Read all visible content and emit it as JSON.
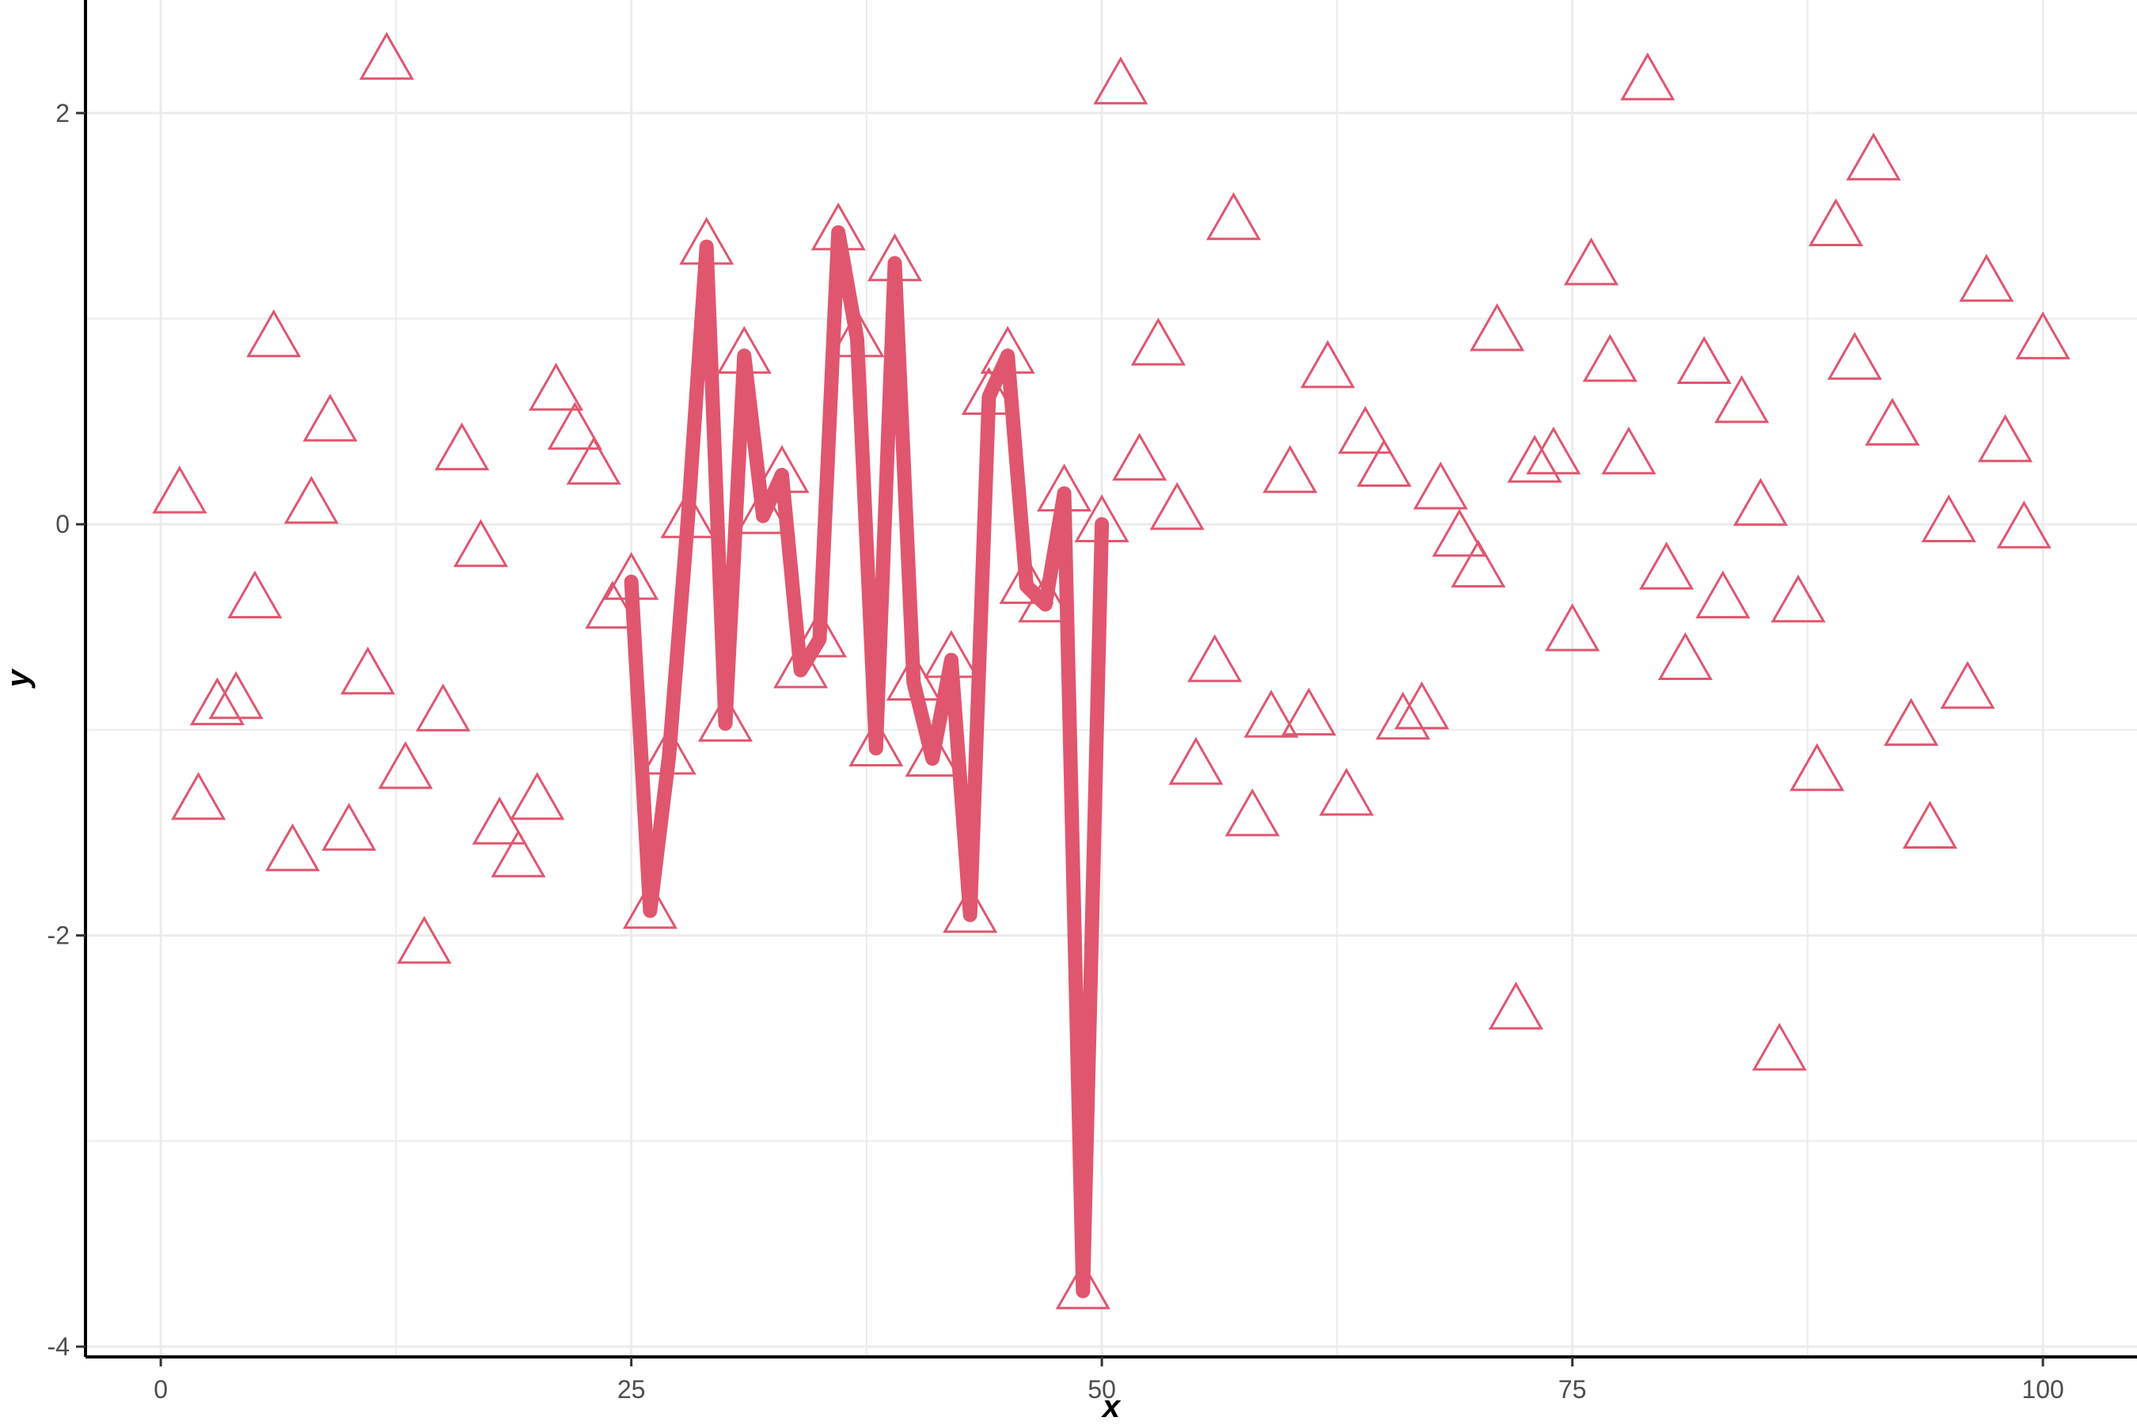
{
  "chart_data": {
    "type": "scatter",
    "xlabel": "x",
    "ylabel": "y",
    "xlim": [
      -4,
      105
    ],
    "ylim": [
      -4.05,
      2.55
    ],
    "x_ticks": [
      0,
      25,
      50,
      75,
      100
    ],
    "y_ticks": [
      -4,
      -2,
      0,
      2
    ],
    "grid": true,
    "legend": "none",
    "colors": {
      "series": "#E0566E",
      "axis": "#000000",
      "grid": "#EBEBEB",
      "tick_text": "#4D4D4D"
    },
    "series": [
      {
        "type": "scatter",
        "marker": "open-triangle",
        "points": [
          [
            1,
            0.14
          ],
          [
            2,
            -1.35
          ],
          [
            3,
            -0.89
          ],
          [
            4,
            -0.86
          ],
          [
            5,
            -0.37
          ],
          [
            6,
            0.9
          ],
          [
            7,
            -1.6
          ],
          [
            8,
            0.09
          ],
          [
            9,
            0.49
          ],
          [
            10,
            -1.5
          ],
          [
            11,
            -0.74
          ],
          [
            12,
            2.25
          ],
          [
            13,
            -1.2
          ],
          [
            14,
            -2.05
          ],
          [
            15,
            -0.92
          ],
          [
            16,
            0.35
          ],
          [
            17,
            -0.12
          ],
          [
            18,
            -1.47
          ],
          [
            19,
            -1.63
          ],
          [
            20,
            -1.35
          ],
          [
            21,
            0.64
          ],
          [
            22,
            0.45
          ],
          [
            23,
            0.28
          ],
          [
            24,
            -0.42
          ],
          [
            25,
            -0.28
          ],
          [
            26,
            -1.88
          ],
          [
            27,
            -1.13
          ],
          [
            28,
            0.02
          ],
          [
            29,
            1.35
          ],
          [
            30,
            -0.97
          ],
          [
            31,
            0.82
          ],
          [
            32,
            0.04
          ],
          [
            33,
            0.24
          ],
          [
            34,
            -0.71
          ],
          [
            35,
            -0.56
          ],
          [
            36,
            1.42
          ],
          [
            37,
            0.9
          ],
          [
            38,
            -1.09
          ],
          [
            39,
            1.27
          ],
          [
            40,
            -0.77
          ],
          [
            41,
            -1.14
          ],
          [
            42,
            -0.66
          ],
          [
            43,
            -1.9
          ],
          [
            44,
            0.62
          ],
          [
            45,
            0.82
          ],
          [
            46,
            -0.3
          ],
          [
            47,
            -0.39
          ],
          [
            48,
            0.15
          ],
          [
            49,
            -3.73
          ],
          [
            50,
            0.0
          ],
          [
            51,
            2.13
          ],
          [
            52,
            0.3
          ],
          [
            53,
            0.86
          ],
          [
            54,
            0.06
          ],
          [
            55,
            -1.18
          ],
          [
            56,
            -0.68
          ],
          [
            57,
            1.47
          ],
          [
            58,
            -1.43
          ],
          [
            59,
            -0.95
          ],
          [
            60,
            0.24
          ],
          [
            61,
            -0.94
          ],
          [
            62,
            0.75
          ],
          [
            63,
            -1.33
          ],
          [
            64,
            0.43
          ],
          [
            65,
            0.27
          ],
          [
            66,
            -0.96
          ],
          [
            67,
            -0.91
          ],
          [
            68,
            0.16
          ],
          [
            69,
            -0.07
          ],
          [
            70,
            -0.22
          ],
          [
            71,
            0.93
          ],
          [
            72,
            -2.37
          ],
          [
            73,
            0.29
          ],
          [
            74,
            0.33
          ],
          [
            75,
            -0.53
          ],
          [
            76,
            1.25
          ],
          [
            77,
            0.78
          ],
          [
            78,
            0.33
          ],
          [
            79,
            2.15
          ],
          [
            80,
            -0.23
          ],
          [
            81,
            -0.67
          ],
          [
            82,
            0.77
          ],
          [
            83,
            -0.37
          ],
          [
            84,
            0.58
          ],
          [
            85,
            0.08
          ],
          [
            86,
            -2.57
          ],
          [
            87,
            -0.39
          ],
          [
            88,
            -1.21
          ],
          [
            89,
            1.44
          ],
          [
            90,
            0.79
          ],
          [
            91,
            1.76
          ],
          [
            92,
            0.47
          ],
          [
            93,
            -0.99
          ],
          [
            94,
            -1.49
          ],
          [
            95,
            0.0
          ],
          [
            96,
            -0.81
          ],
          [
            97,
            1.17
          ],
          [
            98,
            0.39
          ],
          [
            99,
            -0.03
          ],
          [
            100,
            0.89
          ]
        ]
      },
      {
        "type": "line",
        "range": [
          25,
          50
        ]
      }
    ]
  }
}
